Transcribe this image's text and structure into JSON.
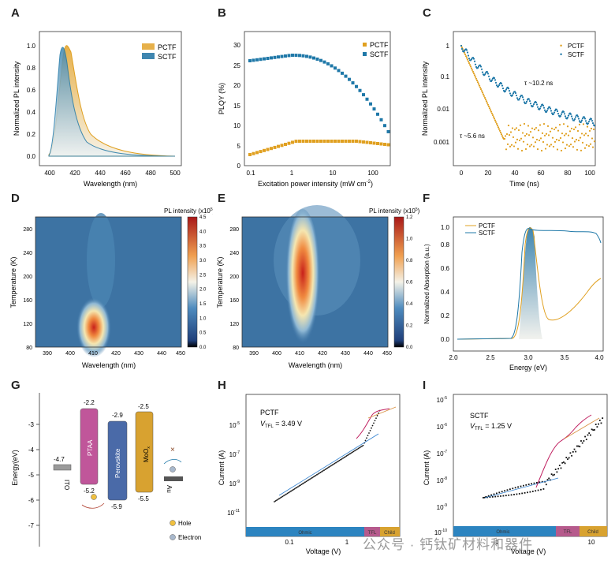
{
  "panels": {
    "A": {
      "letter": "A",
      "xlabel": "Wavelength (nm)",
      "ylabel": "Normalized PL intensity",
      "xticks": [
        "400",
        "420",
        "440",
        "460",
        "480",
        "500"
      ],
      "yticks": [
        "0.0",
        "0.2",
        "0.4",
        "0.6",
        "0.8",
        "1.0"
      ],
      "legend": [
        "PCTF",
        "SCTF"
      ]
    },
    "B": {
      "letter": "B",
      "xlabel": "Excitation power intensity (mW cm",
      "xlabel_sup": "-2",
      "xlabel_end": ")",
      "ylabel": "PLQY (%)",
      "xticks": [
        "0.1",
        "1",
        "10",
        "100"
      ],
      "yticks": [
        "0",
        "5",
        "10",
        "15",
        "20",
        "25",
        "30"
      ],
      "legend": [
        "PCTF",
        "SCTF"
      ]
    },
    "C": {
      "letter": "C",
      "xlabel": "Time (ns)",
      "ylabel": "Normalized PL intensity",
      "xticks": [
        "0",
        "20",
        "40",
        "60",
        "80",
        "100"
      ],
      "yticks": [
        "1",
        "0.1",
        "0.01",
        "0.001"
      ],
      "legend": [
        "PCTF",
        "SCTF"
      ],
      "ann_sctf": "τ ~10.2 ns",
      "ann_pctf": "τ ~5.6 ns"
    },
    "D": {
      "letter": "D",
      "xlabel": "Wavelength (nm)",
      "ylabel": "Temperature (K)",
      "xticks": [
        "390",
        "400",
        "410",
        "420",
        "430",
        "440",
        "450"
      ],
      "yticks": [
        "80",
        "120",
        "160",
        "200",
        "240",
        "280"
      ],
      "cbar_title": "PL intensity (x10",
      "cbar_title_sup": "5",
      "cbar_title_end": ")",
      "cbar_ticks": [
        "0.0",
        "0.5",
        "1.0",
        "1.5",
        "2.0",
        "2.5",
        "3.0",
        "3.5",
        "4.0",
        "4.5"
      ]
    },
    "E": {
      "letter": "E",
      "xlabel": "Wavelength (nm)",
      "ylabel": "Temperature (K)",
      "xticks": [
        "390",
        "400",
        "410",
        "420",
        "430",
        "440",
        "450"
      ],
      "yticks": [
        "80",
        "120",
        "160",
        "200",
        "240",
        "280"
      ],
      "cbar_title": "PL intensity (x10",
      "cbar_title_sup": "5",
      "cbar_title_end": ")",
      "cbar_ticks": [
        "0.0",
        "0.2",
        "0.4",
        "0.6",
        "0.8",
        "1.0",
        "1.2"
      ]
    },
    "F": {
      "letter": "F",
      "xlabel": "Energy (eV)",
      "ylabel": "Normalized Absorption (a.u.)",
      "xticks": [
        "2.0",
        "2.5",
        "3.0",
        "3.5",
        "4.0"
      ],
      "yticks": [
        "0.0",
        "0.2",
        "0.4",
        "0.6",
        "0.8",
        "1.0"
      ],
      "legend": [
        "PCTF",
        "SCTF"
      ]
    },
    "G": {
      "letter": "G",
      "ylabel": "Energy(eV)",
      "yticks": [
        "-3",
        "-4",
        "-5",
        "-6",
        "-7"
      ],
      "layers": [
        {
          "name": "ITO",
          "top": "-4.7"
        },
        {
          "name": "PTAA",
          "top": "-2.2",
          "bottom": "-5.2"
        },
        {
          "name": "Perovskite",
          "top": "-2.9",
          "bottom": "-5.9"
        },
        {
          "name": "MoO",
          "sub": "x",
          "top": "-2.5",
          "bottom": "-5.5"
        },
        {
          "name": "Au"
        }
      ],
      "legend": [
        "Hole",
        "Electron"
      ]
    },
    "H": {
      "letter": "H",
      "title": "PCTF",
      "vtfl_label": "V",
      "vtfl_sub": "TFL",
      "vtfl_value": " = 3.49 V",
      "xlabel": "Voltage (V)",
      "ylabel": "Current (A)",
      "xticks": [
        "0.1",
        "1"
      ],
      "yticks": [
        "10",
        "10",
        "10",
        "10"
      ],
      "ytick_sup": [
        "-5",
        "-7",
        "-9",
        "-11"
      ],
      "regions": [
        "Ohmic",
        "TFL",
        "Child"
      ]
    },
    "I": {
      "letter": "I",
      "title": "SCTF",
      "vtfl_label": "V",
      "vtfl_sub": "TFL",
      "vtfl_value": " = 1.25 V",
      "xlabel": "Voltage (V)",
      "ylabel": "Current (A)",
      "xticks": [
        "1",
        "10"
      ],
      "yticks": [
        "10",
        "10",
        "10",
        "10",
        "10",
        "10"
      ],
      "ytick_sup": [
        "-5",
        "-6",
        "-7",
        "-8",
        "-9",
        "-10"
      ],
      "regions": [
        "Ohmic",
        "TFL",
        "Child"
      ]
    }
  },
  "watermark": "公众号 · 钙钛矿材料和器件",
  "colors": {
    "pctf": "#e0a020",
    "sctf": "#1f78a8"
  }
}
